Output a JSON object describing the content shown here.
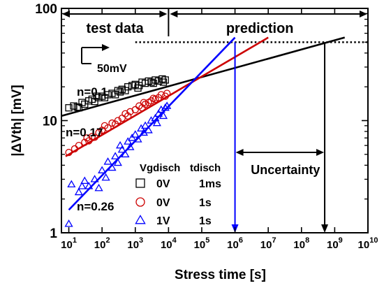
{
  "chart_data": {
    "type": "scatter",
    "xscale": "log",
    "yscale": "log",
    "xlim": [
      6,
      10000000000
    ],
    "ylim": [
      1,
      100
    ],
    "xlabel": "Stress time [s]",
    "ylabel": "|ΔVth| [mV]",
    "x_tick_values": [
      10,
      100,
      1000,
      10000,
      100000,
      1000000,
      10000000,
      100000000,
      1000000000,
      10000000000
    ],
    "x_tick_labels": [
      {
        "base": "10",
        "exp": "1"
      },
      {
        "base": "10",
        "exp": "2"
      },
      {
        "base": "10",
        "exp": "3"
      },
      {
        "base": "10",
        "exp": "4"
      },
      {
        "base": "10",
        "exp": "5"
      },
      {
        "base": "10",
        "exp": "6"
      },
      {
        "base": "10",
        "exp": "7"
      },
      {
        "base": "10",
        "exp": "8"
      },
      {
        "base": "10",
        "exp": "9"
      },
      {
        "base": "10",
        "exp": "10"
      }
    ],
    "y_tick_values": [
      1,
      10,
      100
    ],
    "y_tick_labels": [
      "1",
      "10",
      "100"
    ],
    "legend_headers": [
      "Vgdisch",
      "tdisch"
    ],
    "series": [
      {
        "vgdisch": "0V",
        "tdisch": "1ms",
        "marker": "square",
        "color": "#000000",
        "fit_label": "n=0.1",
        "fit": {
          "from": [
            6,
            11
          ],
          "to": [
            2000000000,
            55
          ]
        },
        "points": [
          [
            10,
            13
          ],
          [
            14,
            13.5
          ],
          [
            18,
            13.2
          ],
          [
            25,
            14.5
          ],
          [
            30,
            14
          ],
          [
            40,
            15
          ],
          [
            50,
            15.5
          ],
          [
            60,
            14.8
          ],
          [
            80,
            16
          ],
          [
            100,
            16.5
          ],
          [
            120,
            16
          ],
          [
            150,
            17
          ],
          [
            200,
            17.5
          ],
          [
            250,
            17
          ],
          [
            300,
            18.5
          ],
          [
            400,
            19
          ],
          [
            500,
            18.5
          ],
          [
            600,
            20
          ],
          [
            800,
            20.5
          ],
          [
            1000,
            21
          ],
          [
            1300,
            20.5
          ],
          [
            1600,
            22
          ],
          [
            2000,
            21.5
          ],
          [
            2500,
            22.5
          ],
          [
            3000,
            22
          ],
          [
            4000,
            23
          ],
          [
            5000,
            22.5
          ],
          [
            6500,
            23.5
          ],
          [
            8000,
            23
          ],
          [
            20,
            13
          ],
          [
            70,
            16.5
          ],
          [
            350,
            18
          ],
          [
            1200,
            19.5
          ],
          [
            3500,
            21.5
          ],
          [
            7000,
            22
          ]
        ]
      },
      {
        "vgdisch": "0V",
        "tdisch": "1s",
        "marker": "circle",
        "color": "#cc0000",
        "fit_label": "n=0.17",
        "fit": {
          "from": [
            8,
            4.8
          ],
          "to": [
            10000000,
            55
          ]
        },
        "points": [
          [
            10,
            5.2
          ],
          [
            15,
            5.6
          ],
          [
            20,
            6
          ],
          [
            30,
            6.4
          ],
          [
            40,
            6.6
          ],
          [
            50,
            7.2
          ],
          [
            60,
            7.1
          ],
          [
            80,
            7.8
          ],
          [
            100,
            8.2
          ],
          [
            150,
            8.6
          ],
          [
            200,
            9.5
          ],
          [
            250,
            9.3
          ],
          [
            300,
            10
          ],
          [
            400,
            10.5
          ],
          [
            500,
            11.5
          ],
          [
            700,
            12
          ],
          [
            1000,
            12.5
          ],
          [
            1300,
            13.5
          ],
          [
            1600,
            13
          ],
          [
            2000,
            14
          ],
          [
            2500,
            14.5
          ],
          [
            3000,
            15
          ],
          [
            4000,
            15.5
          ],
          [
            5000,
            16
          ],
          [
            6000,
            17
          ],
          [
            8000,
            16.5
          ],
          [
            9000,
            17.5
          ],
          [
            35,
            7
          ],
          [
            120,
            9
          ],
          [
            600,
            11
          ],
          [
            1800,
            14.5
          ],
          [
            3500,
            15.8
          ]
        ]
      },
      {
        "vgdisch": "1V",
        "tdisch": "1s",
        "marker": "triangle",
        "color": "#0000ff",
        "fit_label": "n=0.26",
        "fit": {
          "from": [
            10,
            1.6
          ],
          "to": [
            1000000,
            55
          ]
        },
        "points": [
          [
            10,
            1.2
          ],
          [
            12,
            2.7
          ],
          [
            20,
            2.3
          ],
          [
            25,
            2.6
          ],
          [
            30,
            2.9
          ],
          [
            40,
            2.6
          ],
          [
            60,
            3.0
          ],
          [
            80,
            2.5
          ],
          [
            100,
            3.6
          ],
          [
            130,
            3.1
          ],
          [
            150,
            4.3
          ],
          [
            200,
            3.8
          ],
          [
            250,
            4.8
          ],
          [
            300,
            4.2
          ],
          [
            400,
            5.5
          ],
          [
            500,
            5.0
          ],
          [
            600,
            6.5
          ],
          [
            700,
            5.8
          ],
          [
            800,
            7.0
          ],
          [
            1000,
            7.5
          ],
          [
            1200,
            6.8
          ],
          [
            1500,
            8.5
          ],
          [
            2000,
            9.0
          ],
          [
            2500,
            8.2
          ],
          [
            3000,
            10
          ],
          [
            4000,
            10.5
          ],
          [
            5000,
            11.5
          ],
          [
            6000,
            12.5
          ],
          [
            7000,
            11
          ],
          [
            8000,
            13
          ],
          [
            9000,
            13.5
          ],
          [
            350,
            6.0
          ],
          [
            1800,
            7.8
          ],
          [
            4500,
            9.5
          ]
        ]
      }
    ],
    "threshold_y": 50,
    "annotations": {
      "test_data": "test data",
      "prediction": "prediction",
      "uncertainty": "Uncertainty",
      "scale_bar": "50mV",
      "test_prediction_boundary_x": 10000,
      "blue_crossing_x": 1000000,
      "black_crossing_x": 500000000
    }
  }
}
